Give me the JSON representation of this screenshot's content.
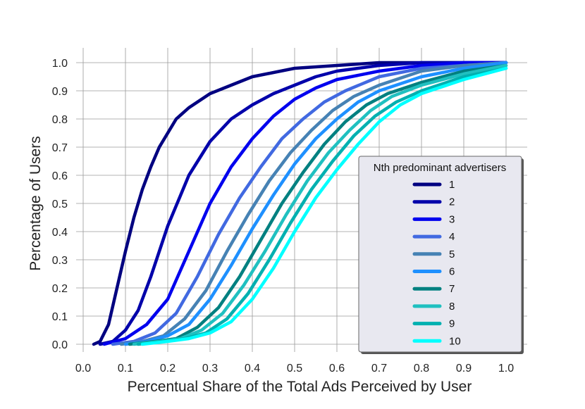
{
  "chart_data": {
    "type": "line",
    "title": "",
    "xlabel": "Percentual Share of the Total Ads Perceived by User",
    "ylabel": "Percentage of Users",
    "xlim": [
      0.0,
      1.0
    ],
    "ylim": [
      0.0,
      1.0
    ],
    "xticks": [
      "0.0",
      "0.1",
      "0.2",
      "0.3",
      "0.4",
      "0.5",
      "0.6",
      "0.7",
      "0.8",
      "0.9",
      "1.0"
    ],
    "yticks": [
      "0.0",
      "0.1",
      "0.2",
      "0.3",
      "0.4",
      "0.5",
      "0.6",
      "0.7",
      "0.8",
      "0.9",
      "1.0"
    ],
    "grid": true,
    "legend": {
      "title": "Nth predominant advertisers",
      "placement": "center-right"
    },
    "series": [
      {
        "name": "1",
        "color": "#000080",
        "x": [
          0.025,
          0.04,
          0.06,
          0.08,
          0.1,
          0.12,
          0.14,
          0.16,
          0.18,
          0.2,
          0.22,
          0.25,
          0.3,
          0.35,
          0.4,
          0.5,
          0.6,
          0.7,
          1.0
        ],
        "y": [
          0.0,
          0.01,
          0.07,
          0.2,
          0.33,
          0.45,
          0.55,
          0.63,
          0.7,
          0.75,
          0.8,
          0.84,
          0.89,
          0.92,
          0.95,
          0.98,
          0.99,
          1.0,
          1.0
        ]
      },
      {
        "name": "2",
        "color": "#0000aa",
        "x": [
          0.04,
          0.07,
          0.1,
          0.13,
          0.16,
          0.2,
          0.25,
          0.3,
          0.35,
          0.4,
          0.45,
          0.5,
          0.55,
          0.6,
          0.7,
          0.8,
          1.0
        ],
        "y": [
          0.0,
          0.01,
          0.05,
          0.12,
          0.24,
          0.42,
          0.6,
          0.72,
          0.8,
          0.85,
          0.89,
          0.92,
          0.95,
          0.97,
          0.99,
          1.0,
          1.0
        ]
      },
      {
        "name": "3",
        "color": "#0000ee",
        "x": [
          0.05,
          0.1,
          0.15,
          0.2,
          0.25,
          0.3,
          0.35,
          0.4,
          0.45,
          0.5,
          0.55,
          0.6,
          0.7,
          0.8,
          0.9,
          1.0
        ],
        "y": [
          0.0,
          0.02,
          0.07,
          0.16,
          0.33,
          0.5,
          0.63,
          0.73,
          0.81,
          0.87,
          0.91,
          0.94,
          0.97,
          0.99,
          1.0,
          1.0
        ]
      },
      {
        "name": "4",
        "color": "#4169e1",
        "x": [
          0.07,
          0.12,
          0.17,
          0.22,
          0.27,
          0.32,
          0.37,
          0.42,
          0.47,
          0.52,
          0.57,
          0.62,
          0.7,
          0.8,
          0.9,
          1.0
        ],
        "y": [
          0.0,
          0.01,
          0.04,
          0.11,
          0.24,
          0.39,
          0.52,
          0.63,
          0.73,
          0.8,
          0.86,
          0.9,
          0.95,
          0.98,
          0.99,
          1.0
        ]
      },
      {
        "name": "5",
        "color": "#4682b4",
        "x": [
          0.09,
          0.14,
          0.19,
          0.24,
          0.29,
          0.34,
          0.39,
          0.44,
          0.49,
          0.54,
          0.59,
          0.64,
          0.7,
          0.8,
          0.9,
          1.0
        ],
        "y": [
          0.0,
          0.01,
          0.03,
          0.09,
          0.19,
          0.33,
          0.46,
          0.58,
          0.68,
          0.76,
          0.83,
          0.88,
          0.92,
          0.97,
          0.99,
          1.0
        ]
      },
      {
        "name": "6",
        "color": "#1e90ff",
        "x": [
          0.1,
          0.15,
          0.2,
          0.25,
          0.3,
          0.35,
          0.4,
          0.45,
          0.5,
          0.55,
          0.6,
          0.65,
          0.7,
          0.8,
          0.9,
          1.0
        ],
        "y": [
          0.0,
          0.01,
          0.03,
          0.07,
          0.16,
          0.28,
          0.41,
          0.53,
          0.64,
          0.73,
          0.8,
          0.86,
          0.9,
          0.95,
          0.98,
          1.0
        ]
      },
      {
        "name": "7",
        "color": "#008080",
        "x": [
          0.11,
          0.17,
          0.22,
          0.27,
          0.32,
          0.37,
          0.42,
          0.47,
          0.52,
          0.57,
          0.62,
          0.67,
          0.72,
          0.8,
          0.9,
          1.0
        ],
        "y": [
          0.0,
          0.01,
          0.02,
          0.06,
          0.13,
          0.24,
          0.37,
          0.5,
          0.61,
          0.71,
          0.79,
          0.85,
          0.89,
          0.93,
          0.97,
          0.99
        ]
      },
      {
        "name": "8",
        "color": "#20c0c0",
        "x": [
          0.12,
          0.18,
          0.23,
          0.28,
          0.33,
          0.38,
          0.43,
          0.48,
          0.53,
          0.58,
          0.63,
          0.68,
          0.73,
          0.8,
          0.9,
          1.0
        ],
        "y": [
          0.0,
          0.01,
          0.02,
          0.05,
          0.11,
          0.21,
          0.33,
          0.46,
          0.58,
          0.68,
          0.76,
          0.83,
          0.88,
          0.92,
          0.96,
          0.99
        ]
      },
      {
        "name": "9",
        "color": "#00b0b0",
        "x": [
          0.13,
          0.19,
          0.24,
          0.29,
          0.34,
          0.39,
          0.44,
          0.49,
          0.54,
          0.59,
          0.64,
          0.69,
          0.74,
          0.8,
          0.9,
          1.0
        ],
        "y": [
          0.0,
          0.01,
          0.02,
          0.04,
          0.09,
          0.18,
          0.3,
          0.43,
          0.55,
          0.65,
          0.74,
          0.81,
          0.86,
          0.9,
          0.95,
          0.98
        ]
      },
      {
        "name": "10",
        "color": "#00ffff",
        "x": [
          0.14,
          0.2,
          0.25,
          0.3,
          0.35,
          0.4,
          0.45,
          0.5,
          0.55,
          0.6,
          0.65,
          0.7,
          0.75,
          0.8,
          0.9,
          1.0
        ],
        "y": [
          0.0,
          0.01,
          0.02,
          0.04,
          0.08,
          0.16,
          0.27,
          0.4,
          0.52,
          0.62,
          0.71,
          0.79,
          0.85,
          0.89,
          0.94,
          0.98
        ]
      }
    ]
  }
}
